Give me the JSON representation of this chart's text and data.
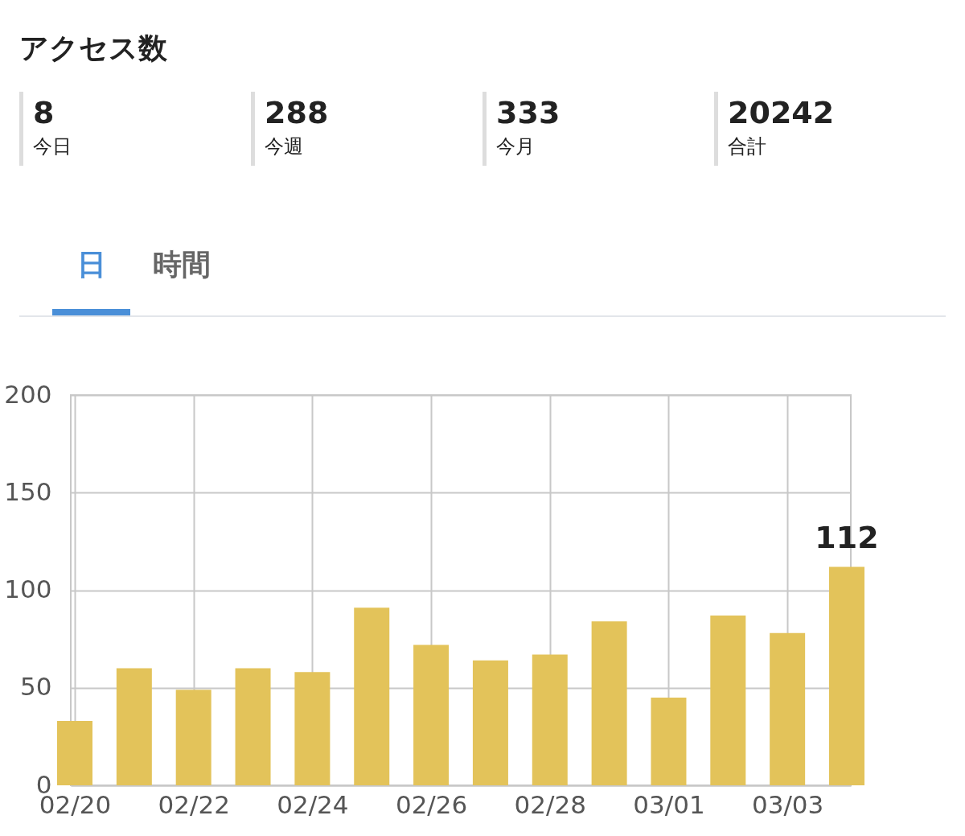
{
  "chart_data": [
    {
      "type": "other",
      "title": "アクセス数",
      "annotations": [
        "8",
        "今日",
        "288",
        "今週",
        "333",
        "今月",
        "20242",
        "合計",
        "日",
        "時間"
      ]
    },
    {
      "type": "bar",
      "x": [
        "2024-02-20",
        "2024-02-21",
        "2024-02-22",
        "2024-02-23",
        "2024-02-24",
        "2024-02-25",
        "2024-02-26",
        "2024-02-27",
        "2024-02-28",
        "2024-02-29",
        "2024-03-01",
        "2024-03-02",
        "2024-03-03",
        "2024-03-04"
      ],
      "values": [
        33,
        60,
        49,
        60,
        58,
        91,
        72,
        64,
        67,
        84,
        45,
        87,
        78,
        112
      ],
      "value_labels": [
        null,
        null,
        null,
        null,
        null,
        null,
        null,
        null,
        null,
        null,
        null,
        null,
        null,
        "112"
      ],
      "color": "#e3c35a",
      "xlim": [
        "2024-02-20",
        "2024-03-04"
      ],
      "xticks": [
        {
          "value": "2024-02-20",
          "label": "02/20"
        },
        {
          "value": "2024-02-22",
          "label": "02/22"
        },
        {
          "value": "2024-02-24",
          "label": "02/24"
        },
        {
          "value": "2024-02-26",
          "label": "02/26"
        },
        {
          "value": "2024-02-28",
          "label": "02/28"
        },
        {
          "value": "2024-03-01",
          "label": "03/01"
        },
        {
          "value": "2024-03-03",
          "label": "03/03"
        }
      ],
      "ylim": [
        0,
        200
      ],
      "yticks": [
        0,
        50,
        100,
        150,
        200
      ],
      "grid": true
    }
  ]
}
